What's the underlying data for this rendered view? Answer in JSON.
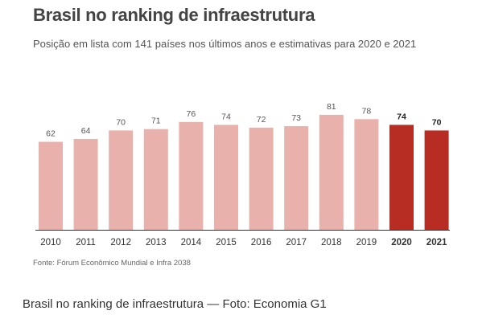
{
  "header": {
    "title": "Brasil no ranking de infraestrutura",
    "subtitle": "Posição em lista com 141 países nos últimos anos e estimativas para 2020 e 2021"
  },
  "footer": {
    "source": "Fonte: Fórum Econômico Mundial e Infra 2038",
    "caption": "Brasil no ranking de infraestrutura — Foto: Economia G1"
  },
  "colors": {
    "historical_bar": "#e8b1ab",
    "estimate_bar": "#b72d24",
    "baseline": "#333333"
  },
  "chart_data": {
    "type": "bar",
    "title": "Brasil no ranking de infraestrutura",
    "subtitle": "Posição em lista com 141 países nos últimos anos e estimativas para 2020 e 2021",
    "categories": [
      "2010",
      "2011",
      "2012",
      "2013",
      "2014",
      "2015",
      "2016",
      "2017",
      "2018",
      "2019",
      "2020",
      "2021"
    ],
    "values": [
      62,
      64,
      70,
      71,
      76,
      74,
      72,
      73,
      81,
      78,
      74,
      70
    ],
    "estimate_categories": [
      "2020",
      "2021"
    ],
    "data_labels": true,
    "grid": false,
    "xlabel": "",
    "ylabel": ""
  }
}
